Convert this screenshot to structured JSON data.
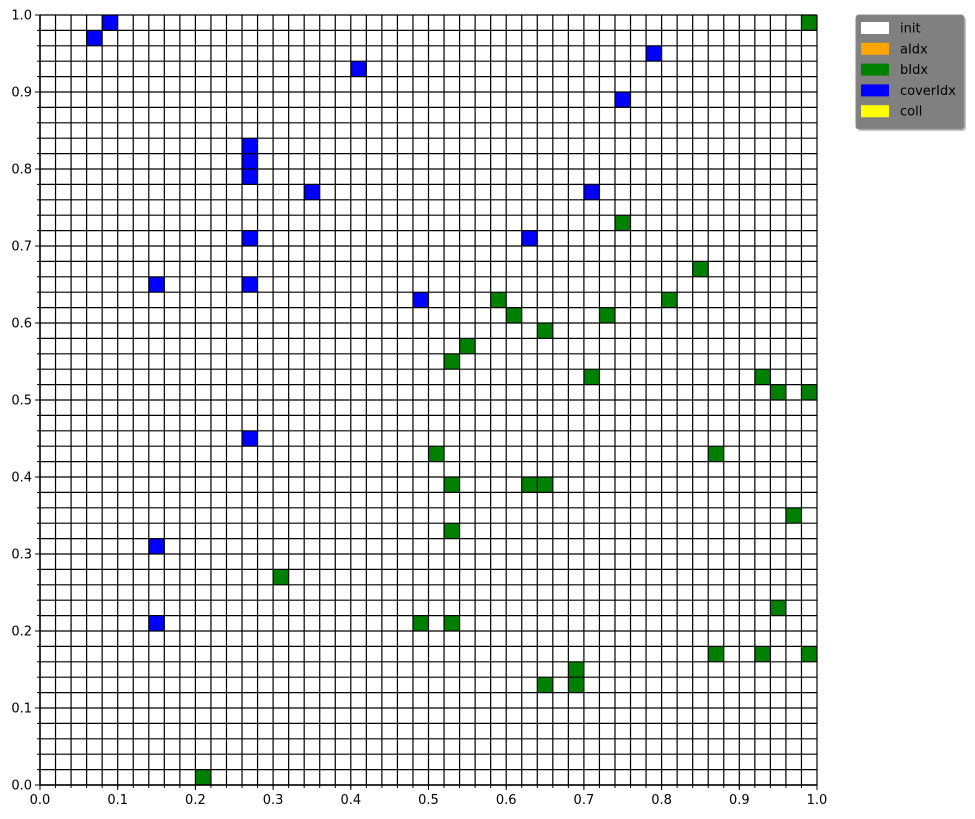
{
  "chart_data": {
    "type": "heatmap",
    "title": "",
    "xlabel": "",
    "ylabel": "",
    "xlim": [
      0.0,
      1.0
    ],
    "ylim": [
      0.0,
      1.0
    ],
    "grid_cells": 50,
    "cell_size": 0.02,
    "grid": true,
    "x_ticks": [
      "0.0",
      "0.1",
      "0.2",
      "0.3",
      "0.4",
      "0.5",
      "0.6",
      "0.7",
      "0.8",
      "0.9",
      "1.0"
    ],
    "y_ticks": [
      "0.0",
      "0.1",
      "0.2",
      "0.3",
      "0.4",
      "0.5",
      "0.6",
      "0.7",
      "0.8",
      "0.9",
      "1.0"
    ],
    "legend_position": "outside-top-right",
    "legend": [
      {
        "label": "init",
        "color": "#ffffff"
      },
      {
        "label": "aIdx",
        "color": "#ffa500"
      },
      {
        "label": "bIdx",
        "color": "#008000"
      },
      {
        "label": "coverIdx",
        "color": "#0000ff"
      },
      {
        "label": "coll",
        "color": "#ffff00"
      }
    ],
    "categories": [
      {
        "name": "coverIdx",
        "color": "#0000ff",
        "cells": [
          [
            0.09,
            0.99
          ],
          [
            0.07,
            0.97
          ],
          [
            0.79,
            0.95
          ],
          [
            0.41,
            0.93
          ],
          [
            0.75,
            0.89
          ],
          [
            0.27,
            0.83
          ],
          [
            0.27,
            0.81
          ],
          [
            0.27,
            0.79
          ],
          [
            0.35,
            0.77
          ],
          [
            0.71,
            0.77
          ],
          [
            0.27,
            0.71
          ],
          [
            0.63,
            0.71
          ],
          [
            0.15,
            0.65
          ],
          [
            0.27,
            0.65
          ],
          [
            0.49,
            0.63
          ],
          [
            0.27,
            0.45
          ],
          [
            0.15,
            0.31
          ],
          [
            0.15,
            0.21
          ]
        ]
      },
      {
        "name": "bIdx",
        "color": "#008000",
        "cells": [
          [
            0.99,
            0.99
          ],
          [
            0.75,
            0.73
          ],
          [
            0.85,
            0.67
          ],
          [
            0.59,
            0.63
          ],
          [
            0.81,
            0.63
          ],
          [
            0.61,
            0.61
          ],
          [
            0.73,
            0.61
          ],
          [
            0.65,
            0.59
          ],
          [
            0.55,
            0.57
          ],
          [
            0.53,
            0.55
          ],
          [
            0.71,
            0.53
          ],
          [
            0.93,
            0.53
          ],
          [
            0.95,
            0.51
          ],
          [
            0.99,
            0.51
          ],
          [
            0.51,
            0.43
          ],
          [
            0.87,
            0.43
          ],
          [
            0.53,
            0.39
          ],
          [
            0.63,
            0.39
          ],
          [
            0.65,
            0.39
          ],
          [
            0.97,
            0.35
          ],
          [
            0.53,
            0.33
          ],
          [
            0.31,
            0.27
          ],
          [
            0.95,
            0.23
          ],
          [
            0.49,
            0.21
          ],
          [
            0.53,
            0.21
          ],
          [
            0.87,
            0.17
          ],
          [
            0.93,
            0.17
          ],
          [
            0.99,
            0.17
          ],
          [
            0.69,
            0.15
          ],
          [
            0.65,
            0.13
          ],
          [
            0.69,
            0.13
          ],
          [
            0.21,
            0.01
          ]
        ]
      }
    ]
  }
}
